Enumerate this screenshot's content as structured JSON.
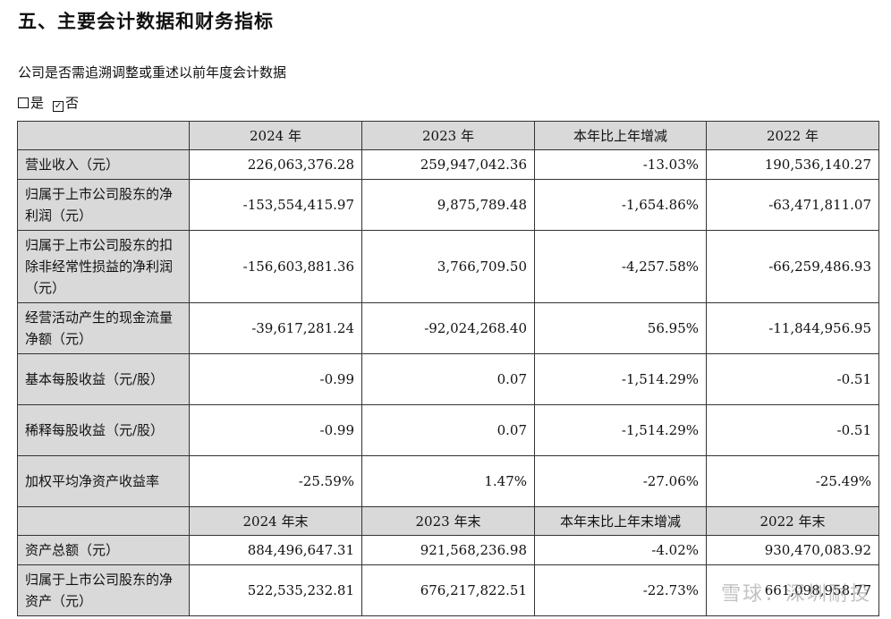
{
  "heading": "五、主要会计数据和财务指标",
  "subtitle": "公司是否需追溯调整或重述以前年度会计数据",
  "options": {
    "no_label": "是",
    "yes_label": "否",
    "check_mark": "✓"
  },
  "table": {
    "header1": [
      "2024 年",
      "2023 年",
      "本年比上年增减",
      "2022 年"
    ],
    "rows1": [
      {
        "label": "营业收入（元）",
        "values": [
          "226,063,376.28",
          "259,947,042.36",
          "-13.03%",
          "190,536,140.27"
        ]
      },
      {
        "label": "归属于上市公司股东的净利润（元）",
        "values": [
          "-153,554,415.97",
          "9,875,789.48",
          "-1,654.86%",
          "-63,471,811.07"
        ]
      },
      {
        "label": "归属于上市公司股东的扣除非经常性损益的净利润（元）",
        "values": [
          "-156,603,881.36",
          "3,766,709.50",
          "-4,257.58%",
          "-66,259,486.93"
        ]
      },
      {
        "label": "经营活动产生的现金流量净额（元）",
        "values": [
          "-39,617,281.24",
          "-92,024,268.40",
          "56.95%",
          "-11,844,956.95"
        ]
      },
      {
        "label": "基本每股收益（元/股）",
        "values": [
          "-0.99",
          "0.07",
          "-1,514.29%",
          "-0.51"
        ]
      },
      {
        "label": "稀释每股收益（元/股）",
        "values": [
          "-0.99",
          "0.07",
          "-1,514.29%",
          "-0.51"
        ]
      },
      {
        "label": "加权平均净资产收益率",
        "values": [
          "-25.59%",
          "1.47%",
          "-27.06%",
          "-25.49%"
        ]
      }
    ],
    "header2": [
      "2024 年末",
      "2023 年末",
      "本年末比上年末增减",
      "2022 年末"
    ],
    "rows2": [
      {
        "label": "资产总额（元）",
        "values": [
          "884,496,647.31",
          "921,568,236.98",
          "-4.02%",
          "930,470,083.92"
        ]
      },
      {
        "label": "归属于上市公司股东的净资产（元）",
        "values": [
          "522,535,232.81",
          "676,217,822.51",
          "-22.73%",
          "661,098,958.77"
        ]
      }
    ]
  },
  "watermark": "雪球：深圳耐投"
}
